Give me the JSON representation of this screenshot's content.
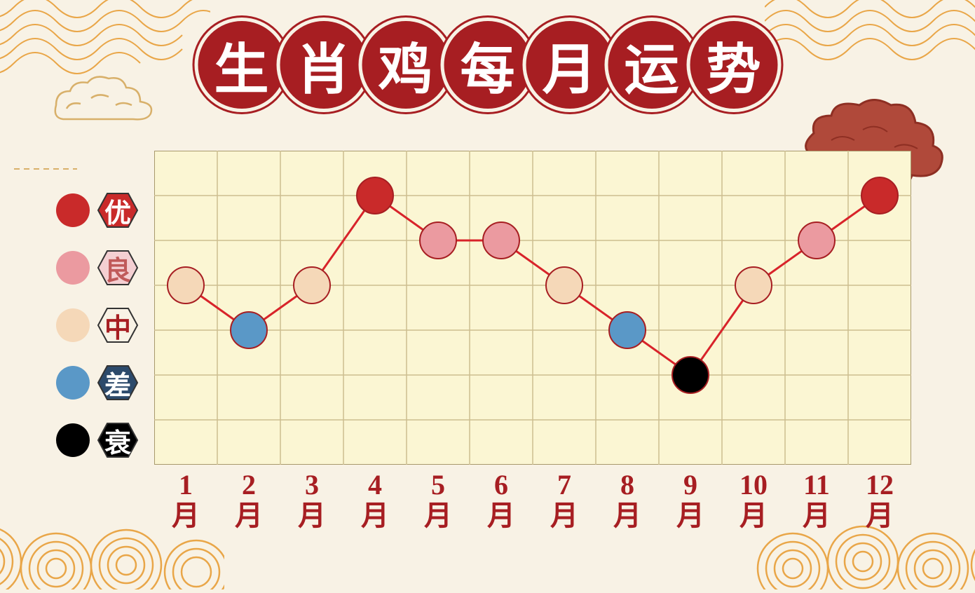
{
  "title_chars": [
    "生",
    "肖",
    "鸡",
    "每",
    "月",
    "运",
    "势"
  ],
  "title_style": {
    "fill": "#a71e22",
    "ring": "#a71e22",
    "ring_bg": "#f8f2e5",
    "text_color": "#ffffff",
    "font_size": 78
  },
  "background_color": "#f8f2e5",
  "wave_color": "#e9a648",
  "cloud_outline": "#d8b06a",
  "cloud_right_fill": "#b0493a",
  "cloud_right_stroke": "#8e2f23",
  "chart": {
    "type": "line",
    "grid_bg": "#fbf6d3",
    "grid_line": "#cdbd90",
    "grid_border": "#a8996c",
    "line_color": "#d8232a",
    "line_width": 3,
    "n_cols": 12,
    "n_rows": 7,
    "y_levels": {
      "优": 1,
      "良": 2,
      "中": 3,
      "差": 4,
      "衰": 5
    },
    "months": [
      "1",
      "2",
      "3",
      "4",
      "5",
      "6",
      "7",
      "8",
      "9",
      "10",
      "11",
      "12"
    ],
    "month_suffix": "月",
    "xlabel_color": "#a71e22",
    "data": [
      {
        "month": 1,
        "level": 3,
        "color": "#f5d8b8"
      },
      {
        "month": 2,
        "level": 4,
        "color": "#5a98c7"
      },
      {
        "month": 3,
        "level": 3,
        "color": "#f5d8b8"
      },
      {
        "month": 4,
        "level": 1,
        "color": "#c92a2a"
      },
      {
        "month": 5,
        "level": 2,
        "color": "#eb9aa0"
      },
      {
        "month": 6,
        "level": 2,
        "color": "#eb9aa0"
      },
      {
        "month": 7,
        "level": 3,
        "color": "#f5d8b8"
      },
      {
        "month": 8,
        "level": 4,
        "color": "#5a98c7"
      },
      {
        "month": 9,
        "level": 5,
        "color": "#000000"
      },
      {
        "month": 10,
        "level": 3,
        "color": "#f5d8b8"
      },
      {
        "month": 11,
        "level": 2,
        "color": "#eb9aa0"
      },
      {
        "month": 12,
        "level": 1,
        "color": "#c92a2a"
      }
    ],
    "marker_radius": 26,
    "marker_stroke": "#a71e22",
    "marker_stroke_width": 2
  },
  "legend": [
    {
      "label": "优",
      "dot": "#c92a2a",
      "hex_fill": "#c92a2a",
      "hex_text": "#ffffff"
    },
    {
      "label": "良",
      "dot": "#eb9aa0",
      "hex_fill": "#f4cfd2",
      "hex_text": "#c05a5a"
    },
    {
      "label": "中",
      "dot": "#f5d8b8",
      "hex_fill": "#f8f2e5",
      "hex_text": "#a71e22"
    },
    {
      "label": "差",
      "dot": "#5a98c7",
      "hex_fill": "#2c4a6b",
      "hex_text": "#ffffff"
    },
    {
      "label": "衰",
      "dot": "#000000",
      "hex_fill": "#000000",
      "hex_text": "#ffffff"
    }
  ],
  "legend_hex_stroke": "#333333"
}
